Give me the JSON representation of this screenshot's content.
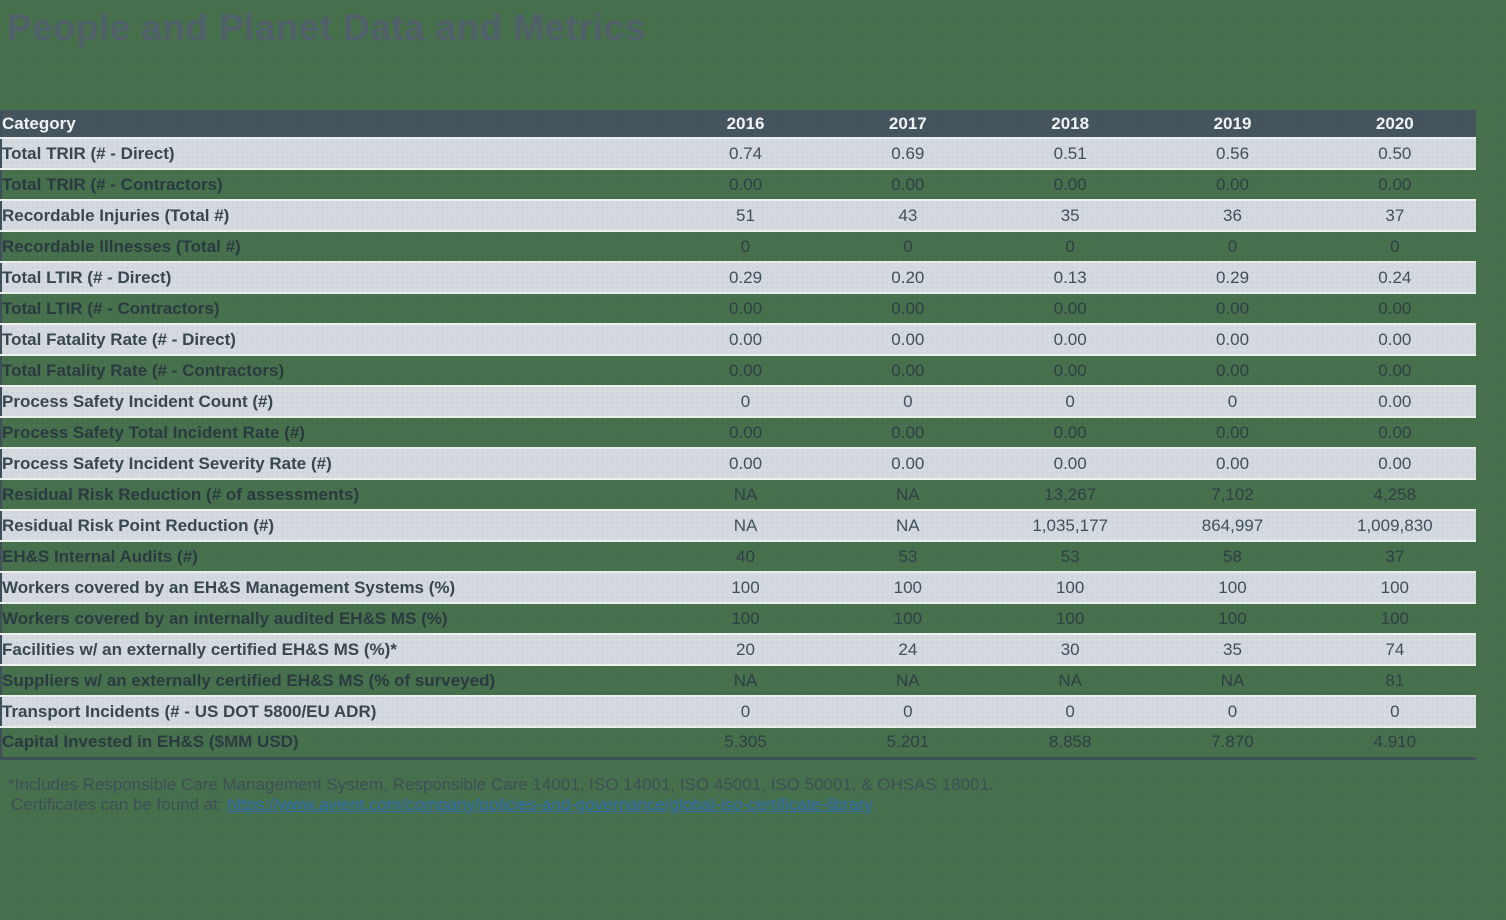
{
  "page_title": "People and Planet Data and Metrics",
  "colors": {
    "page_background": "#47714c",
    "header_background": "#46545e",
    "header_text": "#f3f6f7",
    "light_row_background": "#d5dae0",
    "row_text": "#39474f",
    "title_text": "#51606b",
    "link_blue": "#2d6cb4",
    "table_border": "#40505a"
  },
  "table": {
    "columns": [
      "Category",
      "2016",
      "2017",
      "2018",
      "2019",
      "2020"
    ],
    "rows": [
      {
        "label": "Total TRIR (# - Direct)",
        "values": [
          "0.74",
          "0.69",
          "0.51",
          "0.56",
          "0.50"
        ]
      },
      {
        "label": "Total TRIR (# - Contractors)",
        "values": [
          "0.00",
          "0.00",
          "0.00",
          "0.00",
          "0.00"
        ]
      },
      {
        "label": "Recordable Injuries (Total #)",
        "values": [
          "51",
          "43",
          "35",
          "36",
          "37"
        ]
      },
      {
        "label": "Recordable Illnesses (Total #)",
        "values": [
          "0",
          "0",
          "0",
          "0",
          "0"
        ]
      },
      {
        "label": "Total LTIR (# - Direct)",
        "values": [
          "0.29",
          "0.20",
          "0.13",
          "0.29",
          "0.24"
        ]
      },
      {
        "label": "Total LTIR (# - Contractors)",
        "values": [
          "0.00",
          "0.00",
          "0.00",
          "0.00",
          "0.00"
        ]
      },
      {
        "label": "Total Fatality Rate (# - Direct)",
        "values": [
          "0.00",
          "0.00",
          "0.00",
          "0.00",
          "0.00"
        ]
      },
      {
        "label": "Total Fatality Rate (# - Contractors)",
        "values": [
          "0.00",
          "0.00",
          "0.00",
          "0.00",
          "0.00"
        ]
      },
      {
        "label": "Process Safety Incident Count (#)",
        "values": [
          "0",
          "0",
          "0",
          "0",
          "0.00"
        ]
      },
      {
        "label": "Process Safety Total Incident Rate (#)",
        "values": [
          "0.00",
          "0.00",
          "0.00",
          "0.00",
          "0.00"
        ]
      },
      {
        "label": "Process Safety Incident Severity Rate (#)",
        "values": [
          "0.00",
          "0.00",
          "0.00",
          "0.00",
          "0.00"
        ]
      },
      {
        "label": "Residual Risk Reduction (# of assessments)",
        "values": [
          "NA",
          "NA",
          "13,267",
          "7,102",
          "4,258"
        ]
      },
      {
        "label": "Residual Risk Point Reduction (#)",
        "values": [
          "NA",
          "NA",
          "1,035,177",
          "864,997",
          "1,009,830"
        ]
      },
      {
        "label": "EH&S Internal Audits (#)",
        "values": [
          "40",
          "53",
          "53",
          "58",
          "37"
        ]
      },
      {
        "label": "Workers covered by an EH&S Management Systems (%)",
        "values": [
          "100",
          "100",
          "100",
          "100",
          "100"
        ]
      },
      {
        "label": "Workers covered by an internally audited EH&S MS (%)",
        "values": [
          "100",
          "100",
          "100",
          "100",
          "100"
        ]
      },
      {
        "label": "Facilities w/ an externally certified EH&S MS (%)*",
        "values": [
          "20",
          "24",
          "30",
          "35",
          "74"
        ]
      },
      {
        "label": "Suppliers w/ an externally certified EH&S MS (% of surveyed)",
        "values": [
          "NA",
          "NA",
          "NA",
          "NA",
          "81"
        ]
      },
      {
        "label": "Transport Incidents (# - US DOT 5800/EU ADR)",
        "values": [
          "0",
          "0",
          "0",
          "0",
          "0"
        ]
      },
      {
        "label": "Capital Invested in EH&S ($MM USD)",
        "values": [
          "5.305",
          "5.201",
          "8.858",
          "7.870",
          "4.910"
        ]
      }
    ]
  },
  "footnote": {
    "line1": "*Includes Responsible Care Management System, Responsible Care 14001, ISO 14001, ISO 45001, ISO 50001, & OHSAS 18001.",
    "line2_prefix": "Certificates can be found at: ",
    "link_text": "https://www.avient.com/company/policies-and-governance/global-iso-certificate-library"
  }
}
